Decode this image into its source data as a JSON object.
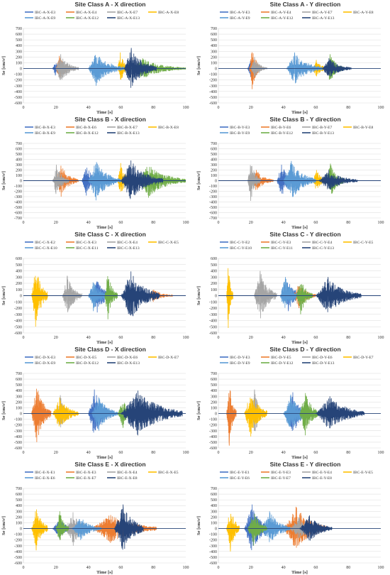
{
  "chart_data": [
    {
      "type": "line",
      "title": "Site Class A - X direction",
      "xlabel": "Time [s]",
      "ylabel": "Se [cm/s²]",
      "xlim": [
        0,
        100
      ],
      "ylim": [
        -600,
        700
      ],
      "xticks": [
        0,
        20,
        40,
        60,
        80,
        100
      ],
      "yticks": [
        -600,
        -500,
        -400,
        -300,
        -200,
        -100,
        0,
        100,
        200,
        300,
        400,
        500,
        600,
        700
      ],
      "grid": "horizontal",
      "legend": "top",
      "series": [
        {
          "name": "IBC-A-X-E3",
          "color": "#4472C4",
          "start": 18,
          "duration": 8,
          "peak": -120
        },
        {
          "name": "IBC-A-X-E4",
          "color": "#ED7D31",
          "start": 20,
          "duration": 10,
          "peak": 220
        },
        {
          "name": "IBC-A-X-E7",
          "color": "#A5A5A5",
          "start": 20,
          "duration": 14,
          "peak": 250
        },
        {
          "name": "IBC-A-X-E8",
          "color": "#FFC000",
          "start": 58,
          "duration": 8,
          "peak": 280
        },
        {
          "name": "IBC-A-X-E9",
          "color": "#5B9BD5",
          "start": 40,
          "duration": 22,
          "peak": -300
        },
        {
          "name": "IBC-A-X-E12",
          "color": "#70AD47",
          "start": 66,
          "duration": 34,
          "peak": 180
        },
        {
          "name": "IBC-A-X-E13",
          "color": "#264478",
          "start": 62,
          "duration": 20,
          "peak": 360
        }
      ]
    },
    {
      "type": "line",
      "title": "Site Class A - Y direction",
      "xlabel": "Time [s]",
      "ylabel": "Se [cm/s²]",
      "xlim": [
        0,
        100
      ],
      "ylim": [
        -600,
        700
      ],
      "xticks": [
        0,
        20,
        40,
        60,
        80,
        100
      ],
      "yticks": [
        -600,
        -500,
        -400,
        -300,
        -200,
        -100,
        0,
        100,
        200,
        300,
        400,
        500,
        600,
        700
      ],
      "grid": "horizontal",
      "legend": "top",
      "series": [
        {
          "name": "IBC-A-Y-E3",
          "color": "#4472C4",
          "start": 18,
          "duration": 8,
          "peak": -150
        },
        {
          "name": "IBC-A-Y-E4",
          "color": "#ED7D31",
          "start": 19,
          "duration": 8,
          "peak": -360
        },
        {
          "name": "IBC-A-Y-E7",
          "color": "#A5A5A5",
          "start": 20,
          "duration": 10,
          "peak": 200
        },
        {
          "name": "IBC-A-Y-E8",
          "color": "#FFC000",
          "start": 58,
          "duration": 10,
          "peak": 150
        },
        {
          "name": "IBC-A-Y-E9",
          "color": "#5B9BD5",
          "start": 42,
          "duration": 22,
          "peak": 280
        },
        {
          "name": "IBC-A-Y-E12",
          "color": "#70AD47",
          "start": 66,
          "duration": 12,
          "peak": 250
        },
        {
          "name": "IBC-A-Y-E13",
          "color": "#264478",
          "start": 64,
          "duration": 18,
          "peak": 180
        }
      ]
    },
    {
      "type": "line",
      "title": "Site Class B - X direction",
      "xlabel": "Time [s]",
      "ylabel": "Se [cm/s²]",
      "xlim": [
        0,
        100
      ],
      "ylim": [
        -700,
        700
      ],
      "xticks": [
        0,
        20,
        40,
        60,
        80,
        100
      ],
      "yticks": [
        -700,
        -600,
        -500,
        -400,
        -300,
        -200,
        -100,
        0,
        100,
        200,
        300,
        400,
        500,
        600,
        700
      ],
      "grid": "horizontal",
      "legend": "top",
      "series": [
        {
          "name": "IBC-B-X-E3",
          "color": "#4472C4",
          "start": 36,
          "duration": 12,
          "peak": -280
        },
        {
          "name": "IBC-B-X-E6",
          "color": "#ED7D31",
          "start": 20,
          "duration": 14,
          "peak": -300
        },
        {
          "name": "IBC-B-X-E7",
          "color": "#A5A5A5",
          "start": 18,
          "duration": 10,
          "peak": 300
        },
        {
          "name": "IBC-B-X-E8",
          "color": "#FFC000",
          "start": 58,
          "duration": 8,
          "peak": 330
        },
        {
          "name": "IBC-B-X-E9",
          "color": "#5B9BD5",
          "start": 40,
          "duration": 20,
          "peak": -370
        },
        {
          "name": "IBC-B-X-E12",
          "color": "#70AD47",
          "start": 70,
          "duration": 30,
          "peak": -320
        },
        {
          "name": "IBC-B-X-E13",
          "color": "#264478",
          "start": 60,
          "duration": 26,
          "peak": 380
        }
      ]
    },
    {
      "type": "line",
      "title": "Site Class B - Y direction",
      "xlabel": "Time [s]",
      "ylabel": "Se [cm/s²]",
      "xlim": [
        0,
        100
      ],
      "ylim": [
        -700,
        700
      ],
      "xticks": [
        0,
        20,
        40,
        60,
        80,
        100
      ],
      "yticks": [
        -700,
        -600,
        -500,
        -400,
        -300,
        -200,
        -100,
        0,
        100,
        200,
        300,
        400,
        500,
        600,
        700
      ],
      "grid": "horizontal",
      "legend": "top",
      "series": [
        {
          "name": "IBC-B-Y-E3",
          "color": "#4472C4",
          "start": 36,
          "duration": 12,
          "peak": 300
        },
        {
          "name": "IBC-B-Y-E6",
          "color": "#ED7D31",
          "start": 20,
          "duration": 14,
          "peak": 200
        },
        {
          "name": "IBC-B-Y-E7",
          "color": "#A5A5A5",
          "start": 18,
          "duration": 8,
          "peak": -380
        },
        {
          "name": "IBC-B-Y-E8",
          "color": "#FFC000",
          "start": 58,
          "duration": 10,
          "peak": 200
        },
        {
          "name": "IBC-B-Y-E9",
          "color": "#5B9BD5",
          "start": 40,
          "duration": 20,
          "peak": 370
        },
        {
          "name": "IBC-B-Y-E12",
          "color": "#70AD47",
          "start": 66,
          "duration": 12,
          "peak": 320
        },
        {
          "name": "IBC-B-Y-E13",
          "color": "#264478",
          "start": 62,
          "duration": 24,
          "peak": 200
        }
      ]
    },
    {
      "type": "line",
      "title": "Site Class C - X direction",
      "xlabel": "Time [s]",
      "ylabel": "Se [cm/s²]",
      "xlim": [
        0,
        100
      ],
      "ylim": [
        -600,
        600
      ],
      "xticks": [
        0,
        20,
        40,
        60,
        80,
        100
      ],
      "yticks": [
        -600,
        -500,
        -400,
        -300,
        -200,
        -100,
        0,
        100,
        200,
        300,
        400,
        500,
        600
      ],
      "grid": "horizontal",
      "legend": "top",
      "series": [
        {
          "name": "IBC-C-X-E2",
          "color": "#4472C4",
          "start": 42,
          "duration": 14,
          "peak": -270
        },
        {
          "name": "IBC-C-X-E3",
          "color": "#ED7D31",
          "start": 76,
          "duration": 16,
          "peak": -100
        },
        {
          "name": "IBC-C-X-E4",
          "color": "#A5A5A5",
          "start": 24,
          "duration": 12,
          "peak": 320
        },
        {
          "name": "IBC-C-X-E5",
          "color": "#FFC000",
          "start": 5,
          "duration": 10,
          "peak": -500
        },
        {
          "name": "IBC-C-X-E10",
          "color": "#5B9BD5",
          "start": 40,
          "duration": 12,
          "peak": -250
        },
        {
          "name": "IBC-C-X-E11",
          "color": "#70AD47",
          "start": 50,
          "duration": 8,
          "peak": -380
        },
        {
          "name": "IBC-C-X-E13",
          "color": "#264478",
          "start": 60,
          "duration": 24,
          "peak": 390
        }
      ]
    },
    {
      "type": "line",
      "title": "Site Class C - Y direction",
      "xlabel": "Time [s]",
      "ylabel": "Se [cm/s²]",
      "xlim": [
        0,
        100
      ],
      "ylim": [
        -600,
        600
      ],
      "xticks": [
        0,
        20,
        40,
        60,
        80,
        100
      ],
      "yticks": [
        -600,
        -500,
        -400,
        -300,
        -200,
        -100,
        0,
        100,
        200,
        300,
        400,
        500,
        600
      ],
      "grid": "horizontal",
      "legend": "top",
      "series": [
        {
          "name": "IBC-C-Y-E2",
          "color": "#4472C4",
          "start": 40,
          "duration": 12,
          "peak": -250
        },
        {
          "name": "IBC-C-Y-E3",
          "color": "#ED7D31",
          "start": 46,
          "duration": 14,
          "peak": -200
        },
        {
          "name": "IBC-C-Y-E4",
          "color": "#A5A5A5",
          "start": 22,
          "duration": 14,
          "peak": 400
        },
        {
          "name": "IBC-C-Y-E5",
          "color": "#FFC000",
          "start": 5,
          "duration": 4,
          "peak": -520
        },
        {
          "name": "IBC-C-Y-E10",
          "color": "#5B9BD5",
          "start": 38,
          "duration": 12,
          "peak": 300
        },
        {
          "name": "IBC-C-Y-E11",
          "color": "#70AD47",
          "start": 48,
          "duration": 10,
          "peak": -300
        },
        {
          "name": "IBC-C-Y-E13",
          "color": "#264478",
          "start": 60,
          "duration": 28,
          "peak": 300
        }
      ]
    },
    {
      "type": "line",
      "title": "Site Class D - X direction",
      "xlabel": "Time [s]",
      "ylabel": "Se [cm/s²]",
      "xlim": [
        0,
        100
      ],
      "ylim": [
        -600,
        700
      ],
      "xticks": [
        0,
        20,
        40,
        60,
        80,
        100
      ],
      "yticks": [
        -600,
        -500,
        -400,
        -300,
        -200,
        -100,
        0,
        100,
        200,
        300,
        400,
        500,
        600,
        700
      ],
      "grid": "horizontal",
      "legend": "top",
      "series": [
        {
          "name": "IBC-D-X-E3",
          "color": "#4472C4",
          "start": 40,
          "duration": 14,
          "peak": 420
        },
        {
          "name": "IBC-D-X-E5",
          "color": "#ED7D31",
          "start": 5,
          "duration": 12,
          "peak": -500
        },
        {
          "name": "IBC-D-X-E6",
          "color": "#A5A5A5",
          "start": 20,
          "duration": 10,
          "peak": 320
        },
        {
          "name": "IBC-D-X-E7",
          "color": "#FFC000",
          "start": 18,
          "duration": 16,
          "peak": 280
        },
        {
          "name": "IBC-D-X-E9",
          "color": "#5B9BD5",
          "start": 42,
          "duration": 16,
          "peak": -300
        },
        {
          "name": "IBC-D-X-E12",
          "color": "#70AD47",
          "start": 58,
          "duration": 12,
          "peak": -250
        },
        {
          "name": "IBC-D-X-E13",
          "color": "#264478",
          "start": 60,
          "duration": 38,
          "peak": 400
        }
      ]
    },
    {
      "type": "line",
      "title": "Site Class D - Y direction",
      "xlabel": "Time [s]",
      "ylabel": "Se [cm/s²]",
      "xlim": [
        0,
        100
      ],
      "ylim": [
        -600,
        700
      ],
      "xticks": [
        0,
        20,
        40,
        60,
        80,
        100
      ],
      "yticks": [
        -600,
        -500,
        -400,
        -300,
        -200,
        -100,
        0,
        100,
        200,
        300,
        400,
        500,
        600,
        700
      ],
      "grid": "horizontal",
      "legend": "top",
      "series": [
        {
          "name": "IBC-D-Y-E3",
          "color": "#4472C4",
          "start": 42,
          "duration": 14,
          "peak": 370
        },
        {
          "name": "IBC-D-Y-E5",
          "color": "#ED7D31",
          "start": 5,
          "duration": 6,
          "peak": -560
        },
        {
          "name": "IBC-D-Y-E6",
          "color": "#A5A5A5",
          "start": 20,
          "duration": 8,
          "peak": 420
        },
        {
          "name": "IBC-D-Y-E7",
          "color": "#FFC000",
          "start": 16,
          "duration": 14,
          "peak": -400
        },
        {
          "name": "IBC-D-Y-E9",
          "color": "#5B9BD5",
          "start": 40,
          "duration": 16,
          "peak": 330
        },
        {
          "name": "IBC-D-Y-E12",
          "color": "#70AD47",
          "start": 50,
          "duration": 12,
          "peak": -380
        },
        {
          "name": "IBC-D-Y-E13",
          "color": "#264478",
          "start": 60,
          "duration": 30,
          "peak": 300
        }
      ]
    },
    {
      "type": "line",
      "title": "Site Class E - X direction",
      "xlabel": "Time [s]",
      "ylabel": "Se [cm/s²]",
      "xlim": [
        0,
        100
      ],
      "ylim": [
        -600,
        700
      ],
      "xticks": [
        0,
        20,
        40,
        60,
        80,
        100
      ],
      "yticks": [
        -600,
        -500,
        -400,
        -300,
        -200,
        -100,
        0,
        100,
        200,
        300,
        400,
        500,
        600,
        700
      ],
      "grid": "horizontal",
      "legend": "top",
      "series": [
        {
          "name": "IBC-E-X-E1",
          "color": "#4472C4",
          "start": 18,
          "duration": 14,
          "peak": 180
        },
        {
          "name": "IBC-E-X-E3",
          "color": "#ED7D31",
          "start": 42,
          "duration": 40,
          "peak": -250
        },
        {
          "name": "IBC-E-X-E4",
          "color": "#A5A5A5",
          "start": 26,
          "duration": 16,
          "peak": -300
        },
        {
          "name": "IBC-E-X-E5",
          "color": "#FFC000",
          "start": 5,
          "duration": 10,
          "peak": -380
        },
        {
          "name": "IBC-E-X-E6",
          "color": "#5B9BD5",
          "start": 30,
          "duration": 18,
          "peak": -200
        },
        {
          "name": "IBC-E-X-E7",
          "color": "#70AD47",
          "start": 20,
          "duration": 8,
          "peak": 300
        },
        {
          "name": "IBC-E-X-E8",
          "color": "#264478",
          "start": 56,
          "duration": 18,
          "peak": 420
        }
      ]
    },
    {
      "type": "line",
      "title": "Site Class E - Y direction",
      "xlabel": "Time [s]",
      "ylabel": "Se [cm/s²]",
      "xlim": [
        0,
        100
      ],
      "ylim": [
        -600,
        700
      ],
      "xticks": [
        0,
        20,
        40,
        60,
        80,
        100
      ],
      "yticks": [
        -600,
        -500,
        -400,
        -300,
        -200,
        -100,
        0,
        100,
        200,
        300,
        400,
        500,
        600,
        700
      ],
      "grid": "horizontal",
      "legend": "top",
      "series": [
        {
          "name": "IBC-E-Y-E1",
          "color": "#4472C4",
          "start": 16,
          "duration": 16,
          "peak": 420
        },
        {
          "name": "IBC-E-Y-E3",
          "color": "#ED7D31",
          "start": 40,
          "duration": 26,
          "peak": 380
        },
        {
          "name": "IBC-E-Y-E4",
          "color": "#A5A5A5",
          "start": 44,
          "duration": 18,
          "peak": 200
        },
        {
          "name": "IBC-E-Y-E5",
          "color": "#FFC000",
          "start": 5,
          "duration": 8,
          "peak": -400
        },
        {
          "name": "IBC-E-Y-E6",
          "color": "#5B9BD5",
          "start": 26,
          "duration": 18,
          "peak": 300
        },
        {
          "name": "IBC-E-Y-E7",
          "color": "#70AD47",
          "start": 18,
          "duration": 12,
          "peak": -300
        },
        {
          "name": "IBC-E-Y-E8",
          "color": "#264478",
          "start": 50,
          "duration": 20,
          "peak": 230
        }
      ]
    }
  ]
}
